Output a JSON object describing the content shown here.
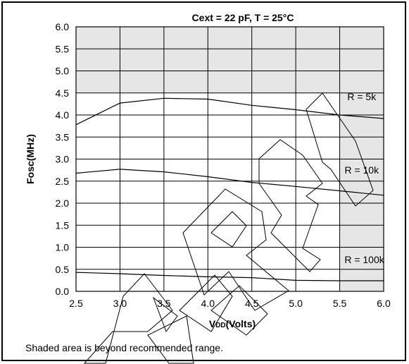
{
  "chart_data": {
    "type": "line",
    "title": "Cext = 22 pF, T = 25°C",
    "xlabel_main": "V",
    "xlabel_sub": "DD",
    "xlabel_unit": "(Volts)",
    "ylabel": "Fosc(MHz)",
    "xlim": [
      2.5,
      6.0
    ],
    "ylim": [
      0.0,
      6.0
    ],
    "x_ticks": [
      "2.5",
      "3.0",
      "3.5",
      "4.0",
      "4.5",
      "5.0",
      "5.5",
      "6.0"
    ],
    "y_ticks": [
      "0.0",
      "0.5",
      "1.0",
      "1.5",
      "2.0",
      "2.5",
      "3.0",
      "3.5",
      "4.0",
      "4.5",
      "5.0",
      "5.5",
      "6.0"
    ],
    "grid": true,
    "shaded_regions": [
      {
        "x": [
          2.5,
          6.0
        ],
        "y": [
          4.5,
          6.0
        ]
      },
      {
        "x": [
          5.5,
          6.0
        ],
        "y": [
          0.0,
          4.5
        ]
      }
    ],
    "shade_color": "#e6e6e6",
    "line_color": "#000000",
    "series": [
      {
        "name": "R = 5k",
        "x": [
          2.5,
          3.0,
          3.5,
          4.0,
          4.5,
          5.0,
          5.5,
          6.0
        ],
        "y": [
          3.78,
          4.27,
          4.38,
          4.36,
          4.22,
          4.12,
          4.0,
          3.92
        ]
      },
      {
        "name": "R = 10k",
        "x": [
          2.5,
          3.0,
          3.5,
          4.0,
          4.5,
          5.0,
          5.5,
          6.0
        ],
        "y": [
          2.68,
          2.77,
          2.71,
          2.6,
          2.47,
          2.38,
          2.28,
          2.18
        ]
      },
      {
        "name": "R = 100k",
        "x": [
          2.5,
          3.0,
          3.5,
          4.0,
          4.5,
          5.0,
          5.5,
          6.0
        ],
        "y": [
          0.43,
          0.4,
          0.36,
          0.33,
          0.31,
          0.25,
          0.24,
          0.24
        ]
      }
    ],
    "annotations": [
      {
        "text": "R = 5k",
        "x": 5.75,
        "y": 4.42
      },
      {
        "text": "R = 10k",
        "x": 5.75,
        "y": 2.75
      },
      {
        "text": "R = 100k",
        "x": 5.78,
        "y": 0.72
      }
    ]
  },
  "footnote": "Shaded area is beyond recommended range."
}
